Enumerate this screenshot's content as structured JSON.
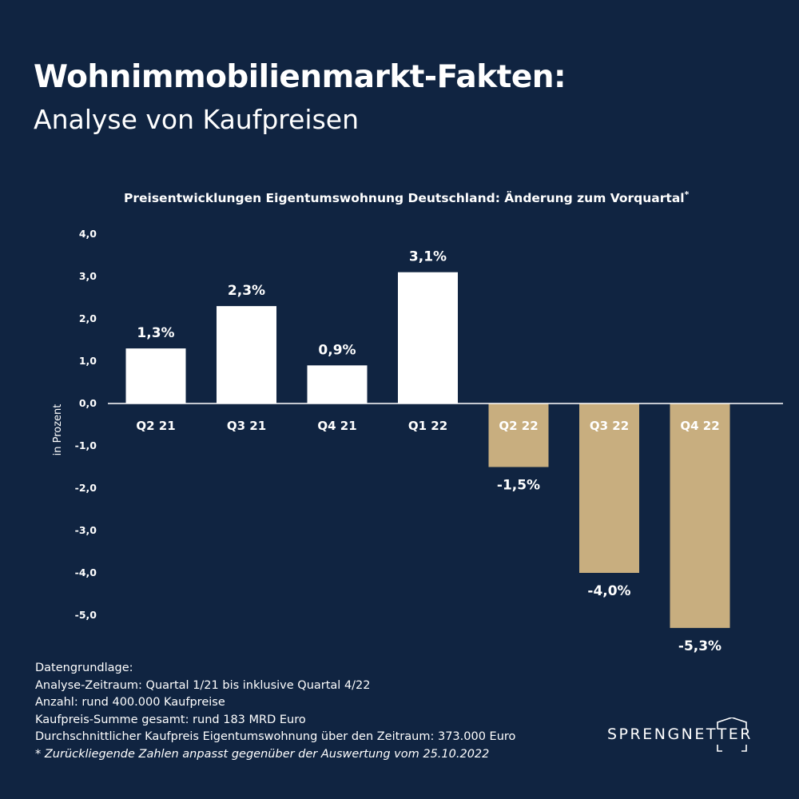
{
  "header": {
    "title": "Wohnimmobilienmarkt-Fakten:",
    "subtitle": "Analyse von Kaufpreisen"
  },
  "chart_data": {
    "type": "bar",
    "title": "Preisentwicklungen Eigentumswohnung Deutschland: Änderung zum Vorquartal",
    "title_marker": "*",
    "ylabel": "in Prozent",
    "xlabel": "",
    "categories": [
      "Q2 21",
      "Q3 21",
      "Q4 21",
      "Q1 22",
      "Q2 22",
      "Q3 22",
      "Q4 22"
    ],
    "values": [
      1.3,
      2.3,
      0.9,
      3.1,
      -1.5,
      -4.0,
      -5.3
    ],
    "data_labels": [
      "1,3%",
      "2,3%",
      "0,9%",
      "3,1%",
      "-1,5%",
      "-4,0%",
      "-5,3%"
    ],
    "yticks": [
      4.0,
      3.0,
      2.0,
      1.0,
      0.0,
      -1.0,
      -2.0,
      -3.0,
      -4.0,
      -5.0
    ],
    "ytick_labels": [
      "4,0",
      "3,0",
      "2,0",
      "1,0",
      "0,0",
      "-1,0",
      "-2,0",
      "-3,0",
      "-4,0",
      "-5,0"
    ],
    "ylim": [
      -5.5,
      4.0
    ],
    "grid": false,
    "legend": "none",
    "colors": {
      "positive": "#ffffff",
      "negative": "#c8ae7f",
      "positive_cat_label": "#ffffff",
      "negative_cat_label": "#ffffff",
      "axis": "#ffffff"
    }
  },
  "footnote": {
    "heading": "Datengrundlage:",
    "lines": [
      "Analyse-Zeitraum: Quartal 1/21 bis inklusive Quartal 4/22",
      "Anzahl: rund 400.000 Kaufpreise",
      "Kaufpreis-Summe gesamt: rund 183 MRD Euro",
      "Durchschnittlicher Kaufpreis Eigentumswohnung über den Zeitraum: 373.000 Euro"
    ],
    "note": "* Zurückliegende Zahlen anpasst gegenüber der Auswertung vom 25.10.2022"
  },
  "brand": {
    "name": "SPRENGNETTER",
    "logo_icon": "bracket-roof-icon"
  }
}
